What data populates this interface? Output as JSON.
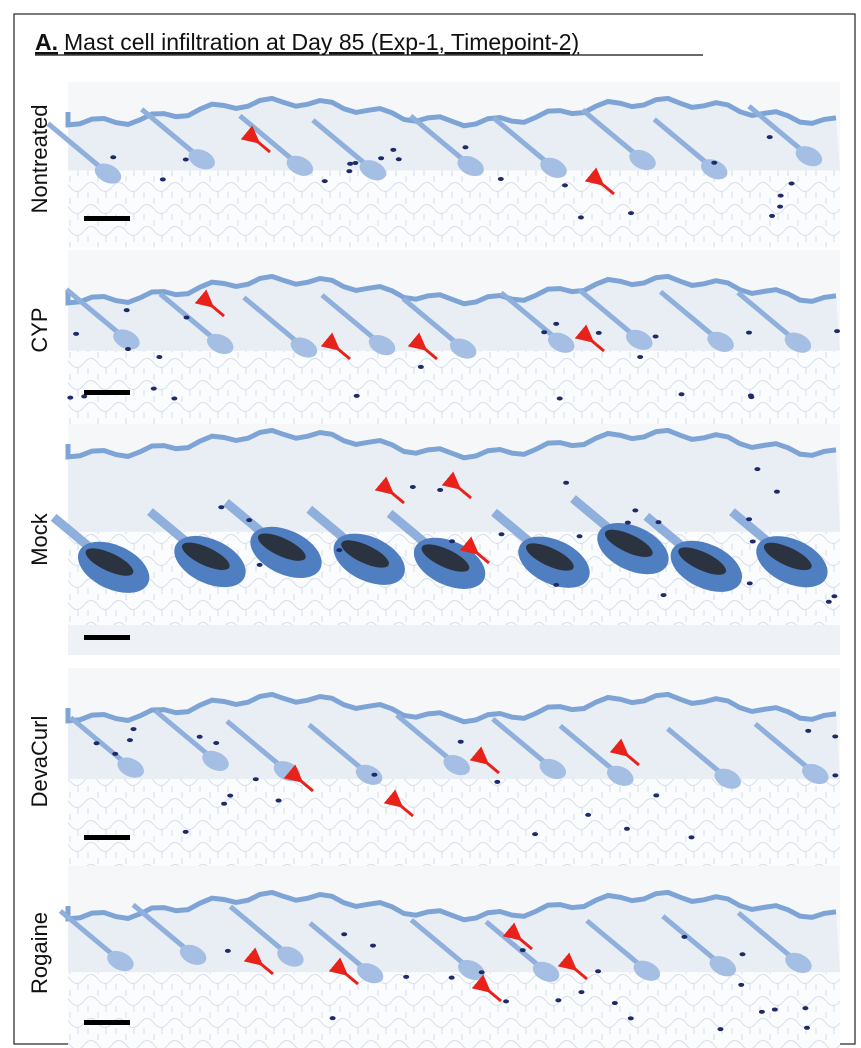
{
  "header": {
    "prefix": "A.",
    "title": "Mast cell infiltration at Day 85 (Exp-1, Timepoint-2)"
  },
  "panels": [
    {
      "label": "Nontreated"
    },
    {
      "label": "CYP"
    },
    {
      "label": "Mock"
    },
    {
      "label": "DevaCurl"
    },
    {
      "label": "Rogaine"
    }
  ]
}
